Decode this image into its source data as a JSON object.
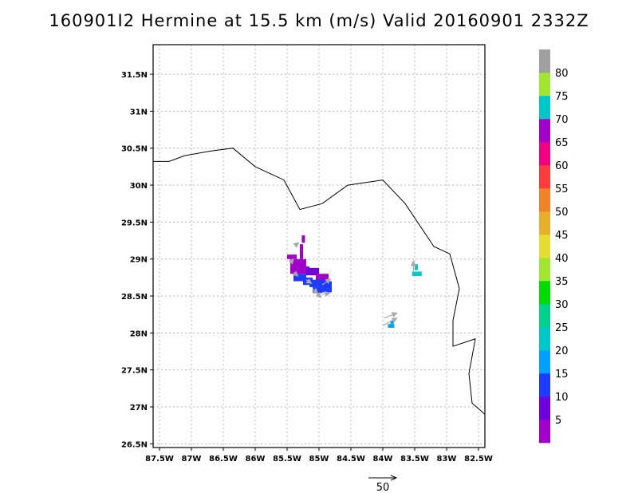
{
  "chart_data": {
    "type": "heatmap",
    "title": "160901I2 Hermine at 15.5 km (m/s) Valid 20160901  2332Z",
    "x_range": [
      -87.6,
      -82.4
    ],
    "y_range": [
      26.45,
      31.9
    ],
    "x_ticks": [
      -87.5,
      -87,
      -86.5,
      -86,
      -85.5,
      -85,
      -84.5,
      -84,
      -83.5,
      -83,
      -82.5
    ],
    "x_tick_labels": [
      "87.5W",
      "87W",
      "86.5W",
      "86W",
      "85.5W",
      "85W",
      "84.5W",
      "84W",
      "83.5W",
      "83W",
      "82.5W"
    ],
    "y_ticks": [
      26.5,
      27,
      27.5,
      28,
      28.5,
      29,
      29.5,
      30,
      30.5,
      31,
      31.5
    ],
    "y_tick_labels": [
      "26.5N",
      "27N",
      "27.5N",
      "28N",
      "28.5N",
      "29N",
      "29.5N",
      "30N",
      "30.5N",
      "31N",
      "31.5N"
    ],
    "grid": true,
    "coastline": [
      [
        -87.6,
        30.32
      ],
      [
        -87.35,
        30.32
      ],
      [
        -87.1,
        30.4
      ],
      [
        -86.7,
        30.46
      ],
      [
        -86.35,
        30.5
      ],
      [
        -86.0,
        30.25
      ],
      [
        -85.55,
        30.07
      ],
      [
        -85.3,
        29.67
      ],
      [
        -84.95,
        29.75
      ],
      [
        -84.55,
        30.0
      ],
      [
        -84.0,
        30.07
      ],
      [
        -83.65,
        29.75
      ],
      [
        -83.2,
        29.17
      ],
      [
        -82.95,
        29.07
      ],
      [
        -82.8,
        28.6
      ],
      [
        -82.9,
        28.17
      ],
      [
        -82.9,
        27.82
      ],
      [
        -82.55,
        27.92
      ],
      [
        -82.65,
        27.45
      ],
      [
        -82.6,
        27.05
      ],
      [
        -82.4,
        26.9
      ]
    ],
    "colorbar": {
      "labels": [
        "5",
        "10",
        "15",
        "20",
        "25",
        "30",
        "35",
        "40",
        "45",
        "50",
        "55",
        "60",
        "65",
        "70",
        "75",
        "80"
      ],
      "colors": [
        "#a000c8",
        "#6e00dc",
        "#1e3cff",
        "#00a0ff",
        "#00c8c8",
        "#00d28c",
        "#00dc00",
        "#a0e632",
        "#e6dc32",
        "#e6af2d",
        "#f08228",
        "#fa3c3c",
        "#f00082",
        "#a000c8",
        "#00c8c8",
        "#a0e632",
        "#a0a0a0"
      ]
    },
    "cells": [
      {
        "lon": -85.27,
        "lat": 29.22,
        "h": 0.1,
        "color": "#a000c8"
      },
      {
        "lon": -85.3,
        "lat": 29.1,
        "h": 0.1,
        "color": "#a000c8"
      },
      {
        "lon": -85.3,
        "lat": 29.0,
        "h": 0.1,
        "color": "#a000c8"
      },
      {
        "lon": -85.5,
        "lat": 29.0,
        "w": 0.15,
        "h": 0.06,
        "color": "#a000c8"
      },
      {
        "lon": -85.45,
        "lat": 28.9,
        "w": 0.25,
        "h": 0.1,
        "color": "#a000c8"
      },
      {
        "lon": -85.45,
        "lat": 28.8,
        "w": 0.3,
        "h": 0.1,
        "color": "#a000c8"
      },
      {
        "lon": -85.2,
        "lat": 28.78,
        "w": 0.2,
        "h": 0.1,
        "color": "#6e00dc"
      },
      {
        "lon": -85.05,
        "lat": 28.7,
        "w": 0.2,
        "h": 0.1,
        "color": "#a000c8"
      },
      {
        "lon": -85.4,
        "lat": 28.7,
        "w": 0.2,
        "h": 0.1,
        "color": "#1e3cff"
      },
      {
        "lon": -85.25,
        "lat": 28.65,
        "w": 0.15,
        "h": 0.1,
        "color": "#1e3cff"
      },
      {
        "lon": -85.15,
        "lat": 28.62,
        "w": 0.25,
        "h": 0.1,
        "color": "#1e3cff"
      },
      {
        "lon": -85.0,
        "lat": 28.62,
        "w": 0.2,
        "h": 0.08,
        "color": "#1e3cff"
      },
      {
        "lon": -84.95,
        "lat": 28.55,
        "w": 0.15,
        "h": 0.12,
        "color": "#1e3cff"
      },
      {
        "lon": -85.1,
        "lat": 28.54,
        "w": 0.15,
        "h": 0.08,
        "color": "#1e3cff"
      },
      {
        "lon": -83.54,
        "lat": 28.77,
        "w": 0.15,
        "h": 0.06,
        "color": "#00c8c8"
      },
      {
        "lon": -83.5,
        "lat": 28.85,
        "w": 0.05,
        "h": 0.08,
        "color": "#00c8c8"
      },
      {
        "lon": -83.92,
        "lat": 28.07,
        "w": 0.1,
        "h": 0.05,
        "color": "#00a0ff"
      },
      {
        "lon": -83.88,
        "lat": 28.12,
        "w": 0.05,
        "h": 0.05,
        "color": "#00a0ff"
      }
    ],
    "vectors": [
      {
        "lon": -85.38,
        "lat": 29.18,
        "u": 0.06,
        "v": 0.04
      },
      {
        "lon": -85.45,
        "lat": 28.95,
        "u": 0.05,
        "v": 0.05
      },
      {
        "lon": -85.4,
        "lat": 28.82,
        "u": 0.07,
        "v": -0.05
      },
      {
        "lon": -85.2,
        "lat": 28.72,
        "u": 0.08,
        "v": -0.05
      },
      {
        "lon": -85.1,
        "lat": 28.6,
        "u": 0.08,
        "v": -0.06
      },
      {
        "lon": -85.05,
        "lat": 28.55,
        "u": 0.08,
        "v": -0.07
      },
      {
        "lon": -84.95,
        "lat": 28.52,
        "u": 0.12,
        "v": 0.02
      },
      {
        "lon": -84.95,
        "lat": 28.65,
        "u": 0.13,
        "v": 0.08
      },
      {
        "lon": -83.52,
        "lat": 28.82,
        "u": 0.0,
        "v": 0.15
      },
      {
        "lon": -84.0,
        "lat": 28.1,
        "u": 0.22,
        "v": 0.1
      },
      {
        "lon": -83.98,
        "lat": 28.2,
        "u": 0.2,
        "v": 0.07
      }
    ],
    "reference_vector": {
      "label": "50"
    }
  }
}
